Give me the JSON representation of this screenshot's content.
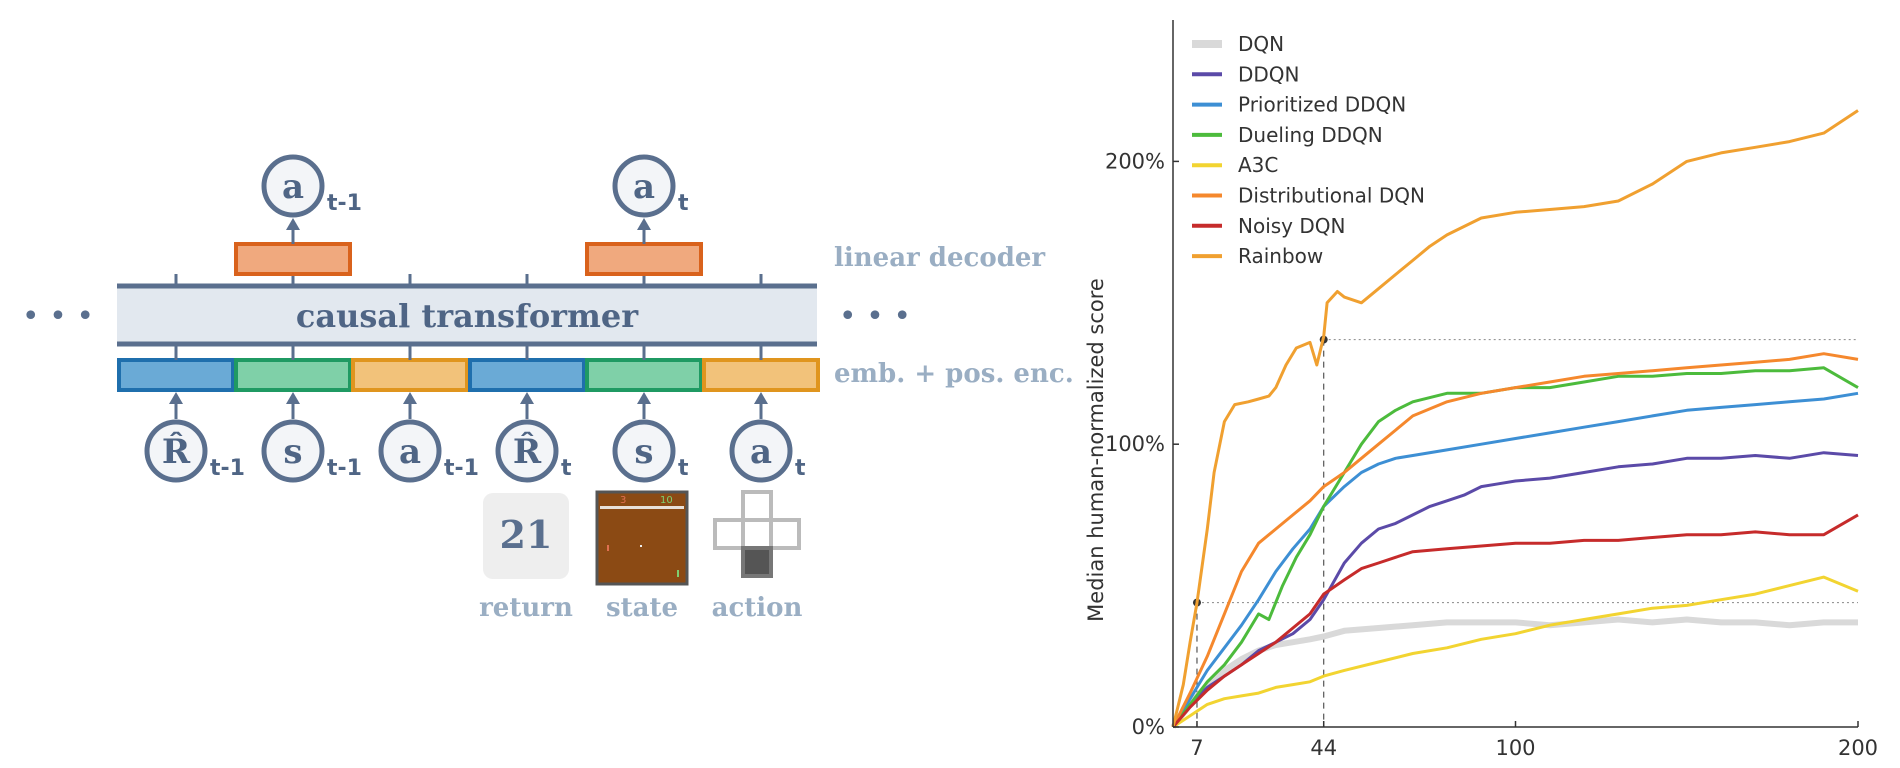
{
  "diagram": {
    "left_dots": "• • •",
    "right_dots": "• • •",
    "transformer_label": "causal transformer",
    "decoder_label": "linear decoder",
    "embedding_label": "emb. + pos. enc.",
    "outputs": [
      {
        "symbol": "a",
        "sub": "t-1"
      },
      {
        "symbol": "a",
        "sub": "t"
      }
    ],
    "inputs": [
      {
        "symbol": "R̂",
        "sub": "t-1",
        "kind": "return"
      },
      {
        "symbol": "s",
        "sub": "t-1",
        "kind": "state"
      },
      {
        "symbol": "a",
        "sub": "t-1",
        "kind": "action"
      },
      {
        "symbol": "R̂",
        "sub": "t",
        "kind": "return"
      },
      {
        "symbol": "s",
        "sub": "t",
        "kind": "state"
      },
      {
        "symbol": "a",
        "sub": "t",
        "kind": "action"
      }
    ],
    "example": {
      "return_value": "21",
      "return_label": "return",
      "state_label": "state",
      "action_label": "action",
      "game_score_left": "3",
      "game_score_right": "10"
    },
    "colors": {
      "return": "#6aaad6",
      "return_border": "#1f6fad",
      "state": "#7fd0a8",
      "state_border": "#1f9a63",
      "action": "#f2c27a",
      "action_border": "#e0951e",
      "decoder": "#f0a97e",
      "decoder_border": "#d9621c",
      "node": "#5a6f8e",
      "label": "#9aaec3"
    }
  },
  "chart_data": {
    "type": "line",
    "ylabel": "Median human-normalized score",
    "xlabel": "",
    "xlim": [
      0,
      200
    ],
    "ylim": [
      0,
      250
    ],
    "xticks": [
      "7",
      "44",
      "100",
      "200"
    ],
    "yticks": [
      "0%",
      "100%",
      "200%"
    ],
    "legend_position": "top-left",
    "series": [
      {
        "name": "DQN",
        "color": "#d9d9d9",
        "points": [
          [
            0,
            0
          ],
          [
            5,
            8
          ],
          [
            10,
            15
          ],
          [
            15,
            20
          ],
          [
            20,
            24
          ],
          [
            25,
            27
          ],
          [
            30,
            29
          ],
          [
            35,
            30
          ],
          [
            40,
            31
          ],
          [
            44,
            32
          ],
          [
            50,
            34
          ],
          [
            60,
            35
          ],
          [
            70,
            36
          ],
          [
            80,
            37
          ],
          [
            90,
            37
          ],
          [
            100,
            37
          ],
          [
            110,
            36
          ],
          [
            120,
            37
          ],
          [
            130,
            38
          ],
          [
            140,
            37
          ],
          [
            150,
            38
          ],
          [
            160,
            37
          ],
          [
            170,
            37
          ],
          [
            180,
            36
          ],
          [
            190,
            37
          ],
          [
            200,
            37
          ]
        ]
      },
      {
        "name": "DDQN",
        "color": "#5b4aa8",
        "points": [
          [
            0,
            0
          ],
          [
            5,
            8
          ],
          [
            10,
            14
          ],
          [
            15,
            18
          ],
          [
            20,
            22
          ],
          [
            25,
            27
          ],
          [
            30,
            30
          ],
          [
            35,
            33
          ],
          [
            40,
            38
          ],
          [
            44,
            45
          ],
          [
            50,
            58
          ],
          [
            55,
            65
          ],
          [
            60,
            70
          ],
          [
            65,
            72
          ],
          [
            70,
            75
          ],
          [
            75,
            78
          ],
          [
            80,
            80
          ],
          [
            85,
            82
          ],
          [
            90,
            85
          ],
          [
            95,
            86
          ],
          [
            100,
            87
          ],
          [
            110,
            88
          ],
          [
            120,
            90
          ],
          [
            130,
            92
          ],
          [
            140,
            93
          ],
          [
            150,
            95
          ],
          [
            160,
            95
          ],
          [
            170,
            96
          ],
          [
            180,
            95
          ],
          [
            190,
            97
          ],
          [
            200,
            96
          ]
        ]
      },
      {
        "name": "Prioritized DDQN",
        "color": "#3d8fd4",
        "points": [
          [
            0,
            0
          ],
          [
            5,
            10
          ],
          [
            10,
            20
          ],
          [
            15,
            28
          ],
          [
            20,
            36
          ],
          [
            25,
            45
          ],
          [
            30,
            55
          ],
          [
            35,
            63
          ],
          [
            40,
            70
          ],
          [
            44,
            78
          ],
          [
            50,
            85
          ],
          [
            55,
            90
          ],
          [
            60,
            93
          ],
          [
            65,
            95
          ],
          [
            70,
            96
          ],
          [
            80,
            98
          ],
          [
            90,
            100
          ],
          [
            100,
            102
          ],
          [
            110,
            104
          ],
          [
            120,
            106
          ],
          [
            130,
            108
          ],
          [
            140,
            110
          ],
          [
            150,
            112
          ],
          [
            160,
            113
          ],
          [
            170,
            114
          ],
          [
            180,
            115
          ],
          [
            190,
            116
          ],
          [
            200,
            118
          ]
        ]
      },
      {
        "name": "Dueling DDQN",
        "color": "#4cbb3c",
        "points": [
          [
            0,
            0
          ],
          [
            5,
            8
          ],
          [
            10,
            16
          ],
          [
            15,
            22
          ],
          [
            20,
            30
          ],
          [
            25,
            40
          ],
          [
            28,
            38
          ],
          [
            32,
            50
          ],
          [
            36,
            60
          ],
          [
            40,
            68
          ],
          [
            44,
            78
          ],
          [
            50,
            90
          ],
          [
            55,
            100
          ],
          [
            60,
            108
          ],
          [
            65,
            112
          ],
          [
            70,
            115
          ],
          [
            80,
            118
          ],
          [
            90,
            118
          ],
          [
            100,
            120
          ],
          [
            110,
            120
          ],
          [
            120,
            122
          ],
          [
            130,
            124
          ],
          [
            140,
            124
          ],
          [
            150,
            125
          ],
          [
            160,
            125
          ],
          [
            170,
            126
          ],
          [
            180,
            126
          ],
          [
            190,
            127
          ],
          [
            200,
            120
          ]
        ]
      },
      {
        "name": "A3C",
        "color": "#f2d431",
        "points": [
          [
            0,
            0
          ],
          [
            5,
            4
          ],
          [
            10,
            8
          ],
          [
            15,
            10
          ],
          [
            20,
            11
          ],
          [
            25,
            12
          ],
          [
            30,
            14
          ],
          [
            35,
            15
          ],
          [
            40,
            16
          ],
          [
            44,
            18
          ],
          [
            50,
            20
          ],
          [
            60,
            23
          ],
          [
            70,
            26
          ],
          [
            80,
            28
          ],
          [
            90,
            31
          ],
          [
            100,
            33
          ],
          [
            110,
            36
          ],
          [
            120,
            38
          ],
          [
            130,
            40
          ],
          [
            140,
            42
          ],
          [
            150,
            43
          ],
          [
            160,
            45
          ],
          [
            170,
            47
          ],
          [
            180,
            50
          ],
          [
            190,
            53
          ],
          [
            200,
            48
          ]
        ]
      },
      {
        "name": "Distributional DQN",
        "color": "#f5882d",
        "points": [
          [
            0,
            0
          ],
          [
            5,
            12
          ],
          [
            10,
            25
          ],
          [
            15,
            40
          ],
          [
            20,
            55
          ],
          [
            25,
            65
          ],
          [
            30,
            70
          ],
          [
            35,
            75
          ],
          [
            40,
            80
          ],
          [
            44,
            85
          ],
          [
            50,
            90
          ],
          [
            55,
            95
          ],
          [
            60,
            100
          ],
          [
            65,
            105
          ],
          [
            70,
            110
          ],
          [
            80,
            115
          ],
          [
            90,
            118
          ],
          [
            100,
            120
          ],
          [
            110,
            122
          ],
          [
            120,
            124
          ],
          [
            130,
            125
          ],
          [
            140,
            126
          ],
          [
            150,
            127
          ],
          [
            160,
            128
          ],
          [
            170,
            129
          ],
          [
            180,
            130
          ],
          [
            190,
            132
          ],
          [
            200,
            130
          ]
        ]
      },
      {
        "name": "Noisy DQN",
        "color": "#c62b2b",
        "points": [
          [
            0,
            0
          ],
          [
            5,
            7
          ],
          [
            10,
            13
          ],
          [
            15,
            18
          ],
          [
            20,
            22
          ],
          [
            25,
            26
          ],
          [
            30,
            30
          ],
          [
            35,
            35
          ],
          [
            40,
            40
          ],
          [
            44,
            47
          ],
          [
            50,
            52
          ],
          [
            55,
            56
          ],
          [
            60,
            58
          ],
          [
            65,
            60
          ],
          [
            70,
            62
          ],
          [
            80,
            63
          ],
          [
            90,
            64
          ],
          [
            100,
            65
          ],
          [
            110,
            65
          ],
          [
            120,
            66
          ],
          [
            130,
            66
          ],
          [
            140,
            67
          ],
          [
            150,
            68
          ],
          [
            160,
            68
          ],
          [
            170,
            69
          ],
          [
            180,
            68
          ],
          [
            190,
            68
          ],
          [
            200,
            75
          ]
        ]
      },
      {
        "name": "Rainbow",
        "color": "#f0a030",
        "points": [
          [
            0,
            0
          ],
          [
            3,
            15
          ],
          [
            5,
            30
          ],
          [
            7,
            44
          ],
          [
            10,
            70
          ],
          [
            12,
            90
          ],
          [
            15,
            108
          ],
          [
            18,
            114
          ],
          [
            22,
            115
          ],
          [
            25,
            116
          ],
          [
            28,
            117
          ],
          [
            30,
            120
          ],
          [
            33,
            128
          ],
          [
            36,
            134
          ],
          [
            40,
            136
          ],
          [
            42,
            128
          ],
          [
            44,
            138
          ],
          [
            45,
            150
          ],
          [
            48,
            154
          ],
          [
            50,
            152
          ],
          [
            55,
            150
          ],
          [
            60,
            155
          ],
          [
            65,
            160
          ],
          [
            70,
            165
          ],
          [
            75,
            170
          ],
          [
            80,
            174
          ],
          [
            90,
            180
          ],
          [
            100,
            182
          ],
          [
            110,
            183
          ],
          [
            120,
            184
          ],
          [
            130,
            186
          ],
          [
            140,
            192
          ],
          [
            150,
            200
          ],
          [
            160,
            203
          ],
          [
            170,
            205
          ],
          [
            180,
            207
          ],
          [
            190,
            210
          ],
          [
            200,
            218
          ]
        ]
      }
    ],
    "reference_markers": [
      {
        "x": 7,
        "y": 44
      },
      {
        "x": 44,
        "y": 137
      }
    ]
  }
}
